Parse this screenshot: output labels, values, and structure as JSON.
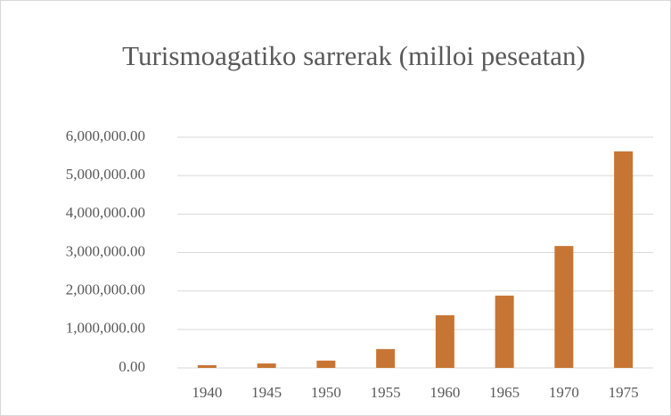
{
  "chart_data": {
    "type": "bar",
    "title": "Turismoagatiko sarrerak (milloi peseatan)",
    "categories": [
      "1940",
      "1945",
      "1950",
      "1955",
      "1960",
      "1965",
      "1970",
      "1975"
    ],
    "values": [
      70000,
      115000,
      190000,
      490000,
      1370000,
      1880000,
      3170000,
      5630000
    ],
    "color": "#c77534",
    "ylim": [
      0,
      6000000
    ],
    "yticks": [
      {
        "value": 0,
        "label": "0.00"
      },
      {
        "value": 1000000,
        "label": "1,000,000.00"
      },
      {
        "value": 2000000,
        "label": "2,000,000.00"
      },
      {
        "value": 3000000,
        "label": "3,000,000.00"
      },
      {
        "value": 4000000,
        "label": "4,000,000.00"
      },
      {
        "value": 5000000,
        "label": "5,000,000.00"
      },
      {
        "value": 6000000,
        "label": "6,000,000.00"
      }
    ],
    "grid": true
  }
}
